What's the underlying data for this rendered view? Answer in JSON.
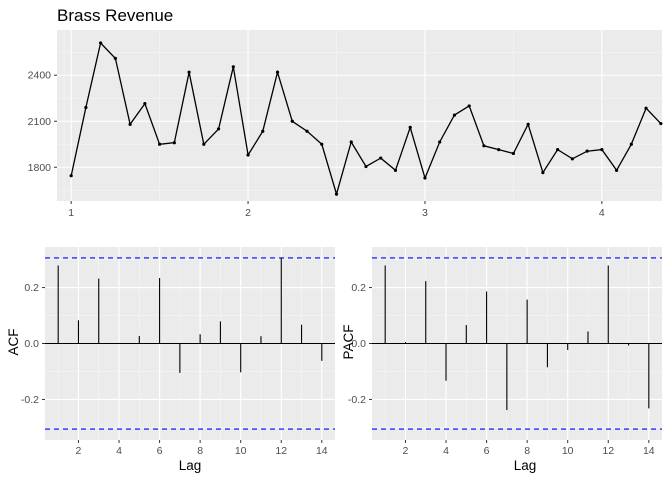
{
  "chart_data": [
    {
      "type": "line",
      "title": "Brass Revenue",
      "xlabel": "",
      "ylabel": "",
      "xlim": [
        0.92,
        4.34
      ],
      "ylim": [
        1580,
        2695
      ],
      "x_ticks": [
        1,
        2,
        3,
        4
      ],
      "y_ticks": [
        1800,
        2100,
        2400
      ],
      "grid": true,
      "series": [
        {
          "x": [
            1.0,
            1.0833,
            1.1667,
            1.25,
            1.3333,
            1.4167,
            1.5,
            1.5833,
            1.6667,
            1.75,
            1.8333,
            1.9167,
            2.0,
            2.0833,
            2.1667,
            2.25,
            2.3333,
            2.4167,
            2.5,
            2.5833,
            2.6667,
            2.75,
            2.8333,
            2.9167,
            3.0,
            3.0833,
            3.1667,
            3.25,
            3.3333,
            3.4167,
            3.5,
            3.5833,
            3.6667,
            3.75,
            3.8333,
            3.9167,
            4.0,
            4.0833,
            4.1667,
            4.25,
            4.3333
          ],
          "values": [
            1745,
            2190,
            2610,
            2510,
            2080,
            2215,
            1950,
            1960,
            2420,
            1950,
            2050,
            2455,
            1880,
            2035,
            2420,
            2100,
            2035,
            1950,
            1625,
            1965,
            1805,
            1860,
            1780,
            2060,
            1730,
            1965,
            2140,
            2200,
            1940,
            1915,
            1890,
            2080,
            1765,
            1915,
            1855,
            1905,
            1915,
            1780,
            1950,
            2185,
            2085
          ]
        }
      ]
    },
    {
      "type": "bar",
      "title": "",
      "xlabel": "Lag",
      "ylabel": "ACF",
      "xlim": [
        0.35,
        14.65
      ],
      "ylim": [
        -0.345,
        0.345
      ],
      "x_ticks": [
        2,
        4,
        6,
        8,
        10,
        12,
        14
      ],
      "y_ticks": [
        -0.2,
        0.0,
        0.2
      ],
      "y_tick_labels": [
        "-0.2",
        "0.0",
        "0.2"
      ],
      "ci": 0.306,
      "ci_color": "#0000ff",
      "grid": true,
      "categories": [
        1,
        2,
        3,
        4,
        5,
        6,
        7,
        8,
        9,
        10,
        11,
        12,
        13,
        14
      ],
      "values": [
        0.279,
        0.083,
        0.232,
        0.002,
        0.027,
        0.234,
        -0.105,
        0.033,
        0.079,
        -0.103,
        0.026,
        0.306,
        0.067,
        -0.062
      ]
    },
    {
      "type": "bar",
      "title": "",
      "xlabel": "Lag",
      "ylabel": "PACF",
      "xlim": [
        0.35,
        14.65
      ],
      "ylim": [
        -0.345,
        0.345
      ],
      "x_ticks": [
        2,
        4,
        6,
        8,
        10,
        12,
        14
      ],
      "y_ticks": [
        -0.2,
        0.0,
        0.2
      ],
      "y_tick_labels": [
        "-0.2",
        "0.0",
        "0.2"
      ],
      "ci": 0.306,
      "ci_color": "#0000ff",
      "grid": true,
      "categories": [
        1,
        2,
        3,
        4,
        5,
        6,
        7,
        8,
        9,
        10,
        11,
        12,
        13,
        14
      ],
      "values": [
        0.279,
        0.005,
        0.223,
        -0.133,
        0.066,
        0.186,
        -0.238,
        0.157,
        -0.085,
        -0.023,
        0.043,
        0.279,
        -0.007,
        -0.232
      ]
    }
  ]
}
